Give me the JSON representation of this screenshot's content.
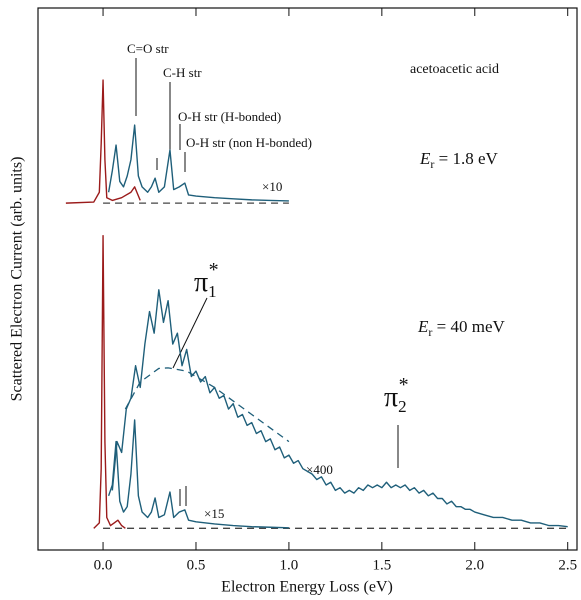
{
  "chart_data": {
    "type": "line",
    "x_label": "Electron Energy Loss (eV)",
    "y_label": "Scattered Electron Current (arb. units)",
    "xlim": [
      -0.35,
      2.55
    ],
    "ylim": [
      0,
      100
    ],
    "xticks": [
      {
        "value": 0,
        "label": "0.0"
      },
      0.5,
      {
        "value": 1,
        "label": "1.0"
      },
      1.5,
      {
        "value": 2,
        "label": "2.0"
      },
      2.5
    ],
    "annotations": {
      "co": "C=O str",
      "ch": "C-H str",
      "oh1": "O-H str (H-bonded)",
      "oh2": "O-H str (non H-bonded)",
      "molecule": "acetoacetic acid",
      "er_high": {
        "text": "E",
        "sub": "r",
        "rest": " = 1.8 eV"
      },
      "er_low": {
        "text": "E",
        "sub": "r",
        "rest": " = 40 meV"
      },
      "x10": "×10",
      "x15": "×15",
      "x400": "×400",
      "pi1": {
        "text": "π",
        "sub": "1",
        "sup": "*"
      },
      "pi2": {
        "text": "π",
        "sub": "2",
        "sup": "*"
      }
    },
    "series": [
      {
        "name": "upper elastic",
        "color": "#9b1b1b",
        "style": "solid",
        "x": [
          -0.2,
          -0.05,
          -0.02,
          -0.01,
          0,
          0.01,
          0.02,
          0.05,
          0.1,
          0.15,
          0.17,
          0.2
        ],
        "values": [
          64,
          64.2,
          66,
          75,
          86.7,
          72,
          65,
          64.5,
          65,
          66,
          67,
          64.5
        ]
      },
      {
        "name": "upper baseline",
        "color": "#444444",
        "style": "dashed",
        "x": [
          0,
          1.0
        ],
        "values": [
          64,
          64
        ]
      },
      {
        "name": "upper ×10",
        "color": "#1f5f7a",
        "style": "solid",
        "x": [
          0.03,
          0.05,
          0.07,
          0.09,
          0.11,
          0.13,
          0.15,
          0.17,
          0.19,
          0.21,
          0.24,
          0.26,
          0.28,
          0.3,
          0.33,
          0.36,
          0.38,
          0.41,
          0.44,
          0.46,
          0.5,
          0.6,
          0.7,
          0.8,
          0.9,
          1.0
        ],
        "values": [
          66,
          70,
          74.7,
          68,
          67,
          69,
          72,
          78.4,
          69,
          67,
          66,
          67,
          68.6,
          66,
          67,
          73.8,
          66.5,
          67,
          67.7,
          65.5,
          65.3,
          65,
          64.8,
          64.6,
          64.5,
          64.4
        ]
      },
      {
        "name": "lower baseline",
        "color": "#444444",
        "style": "dashed",
        "x": [
          0,
          2.5
        ],
        "values": [
          4,
          4
        ]
      },
      {
        "name": "fit",
        "color": "#1f5f7a",
        "style": "dashed",
        "x": [
          0.12,
          0.2,
          0.3,
          0.35,
          0.45,
          0.6,
          0.8,
          1.0
        ],
        "values": [
          26,
          31,
          33.5,
          33.6,
          33,
          30,
          25,
          20
        ]
      },
      {
        "name": "×400",
        "color": "#1f5f7a",
        "style": "solid",
        "x": [
          0.05,
          0.075,
          0.1,
          0.125,
          0.15,
          0.175,
          0.2,
          0.225,
          0.25,
          0.275,
          0.3,
          0.325,
          0.35,
          0.375,
          0.4,
          0.425,
          0.45,
          0.475,
          0.5,
          0.525,
          0.55,
          0.575,
          0.6,
          0.625,
          0.65,
          0.675,
          0.7,
          0.725,
          0.75,
          0.775,
          0.8,
          0.825,
          0.85,
          0.875,
          0.9,
          0.925,
          0.95,
          0.975,
          1.0,
          1.025,
          1.05,
          1.075,
          1.1,
          1.125,
          1.15,
          1.175,
          1.2,
          1.225,
          1.25,
          1.275,
          1.3,
          1.325,
          1.35,
          1.375,
          1.4,
          1.425,
          1.45,
          1.475,
          1.5,
          1.525,
          1.55,
          1.575,
          1.6,
          1.625,
          1.65,
          1.675,
          1.7,
          1.725,
          1.75,
          1.775,
          1.8,
          1.825,
          1.85,
          1.875,
          1.9,
          1.925,
          1.95,
          1.975,
          2.0,
          2.05,
          2.1,
          2.15,
          2.2,
          2.25,
          2.3,
          2.35,
          2.4,
          2.45,
          2.5
        ],
        "values": [
          11,
          20,
          18,
          26,
          28,
          34,
          30,
          38,
          44,
          40,
          48,
          42,
          46,
          38,
          40,
          34,
          37,
          32,
          33,
          31,
          32,
          29,
          30,
          28,
          28.5,
          26,
          27,
          24.5,
          25,
          23,
          23.5,
          21.5,
          22,
          20,
          20.5,
          18.5,
          19,
          17,
          17.5,
          16,
          16.5,
          15,
          14.5,
          14,
          13,
          13.5,
          12,
          12.5,
          11,
          11.5,
          10.5,
          11,
          10.5,
          11.5,
          11,
          12,
          11.5,
          12,
          11.5,
          12.5,
          11.5,
          12,
          11.5,
          12,
          11,
          11.5,
          10.5,
          11,
          10,
          10.5,
          9.5,
          9.5,
          8.5,
          9,
          8,
          8,
          7.5,
          7.5,
          7,
          6.5,
          6,
          6,
          5.5,
          5.5,
          5,
          5,
          4.5,
          4.5,
          4.3
        ]
      },
      {
        "name": "lower ×15",
        "color": "#1f5f7a",
        "style": "solid",
        "x": [
          0.03,
          0.05,
          0.07,
          0.09,
          0.11,
          0.13,
          0.15,
          0.17,
          0.19,
          0.21,
          0.24,
          0.26,
          0.28,
          0.3,
          0.33,
          0.36,
          0.38,
          0.41,
          0.44,
          0.46,
          0.5,
          0.6,
          0.7,
          0.8,
          0.9,
          1.0
        ],
        "values": [
          10,
          12,
          20,
          9,
          7,
          8,
          14,
          24,
          10,
          7,
          6,
          7,
          9.6,
          6,
          6.5,
          10.7,
          6,
          7,
          7.4,
          5.5,
          5.2,
          4.8,
          4.5,
          4.3,
          4.2,
          4.1
        ]
      },
      {
        "name": "lower elastic",
        "color": "#9b1b1b",
        "style": "solid",
        "x": [
          -0.05,
          -0.02,
          -0.01,
          0,
          0.01,
          0.02,
          0.04,
          0.06,
          0.08,
          0.1,
          0.12
        ],
        "values": [
          4,
          5,
          15,
          58,
          20,
          6,
          4.5,
          5,
          5.5,
          4.5,
          4
        ]
      }
    ]
  }
}
